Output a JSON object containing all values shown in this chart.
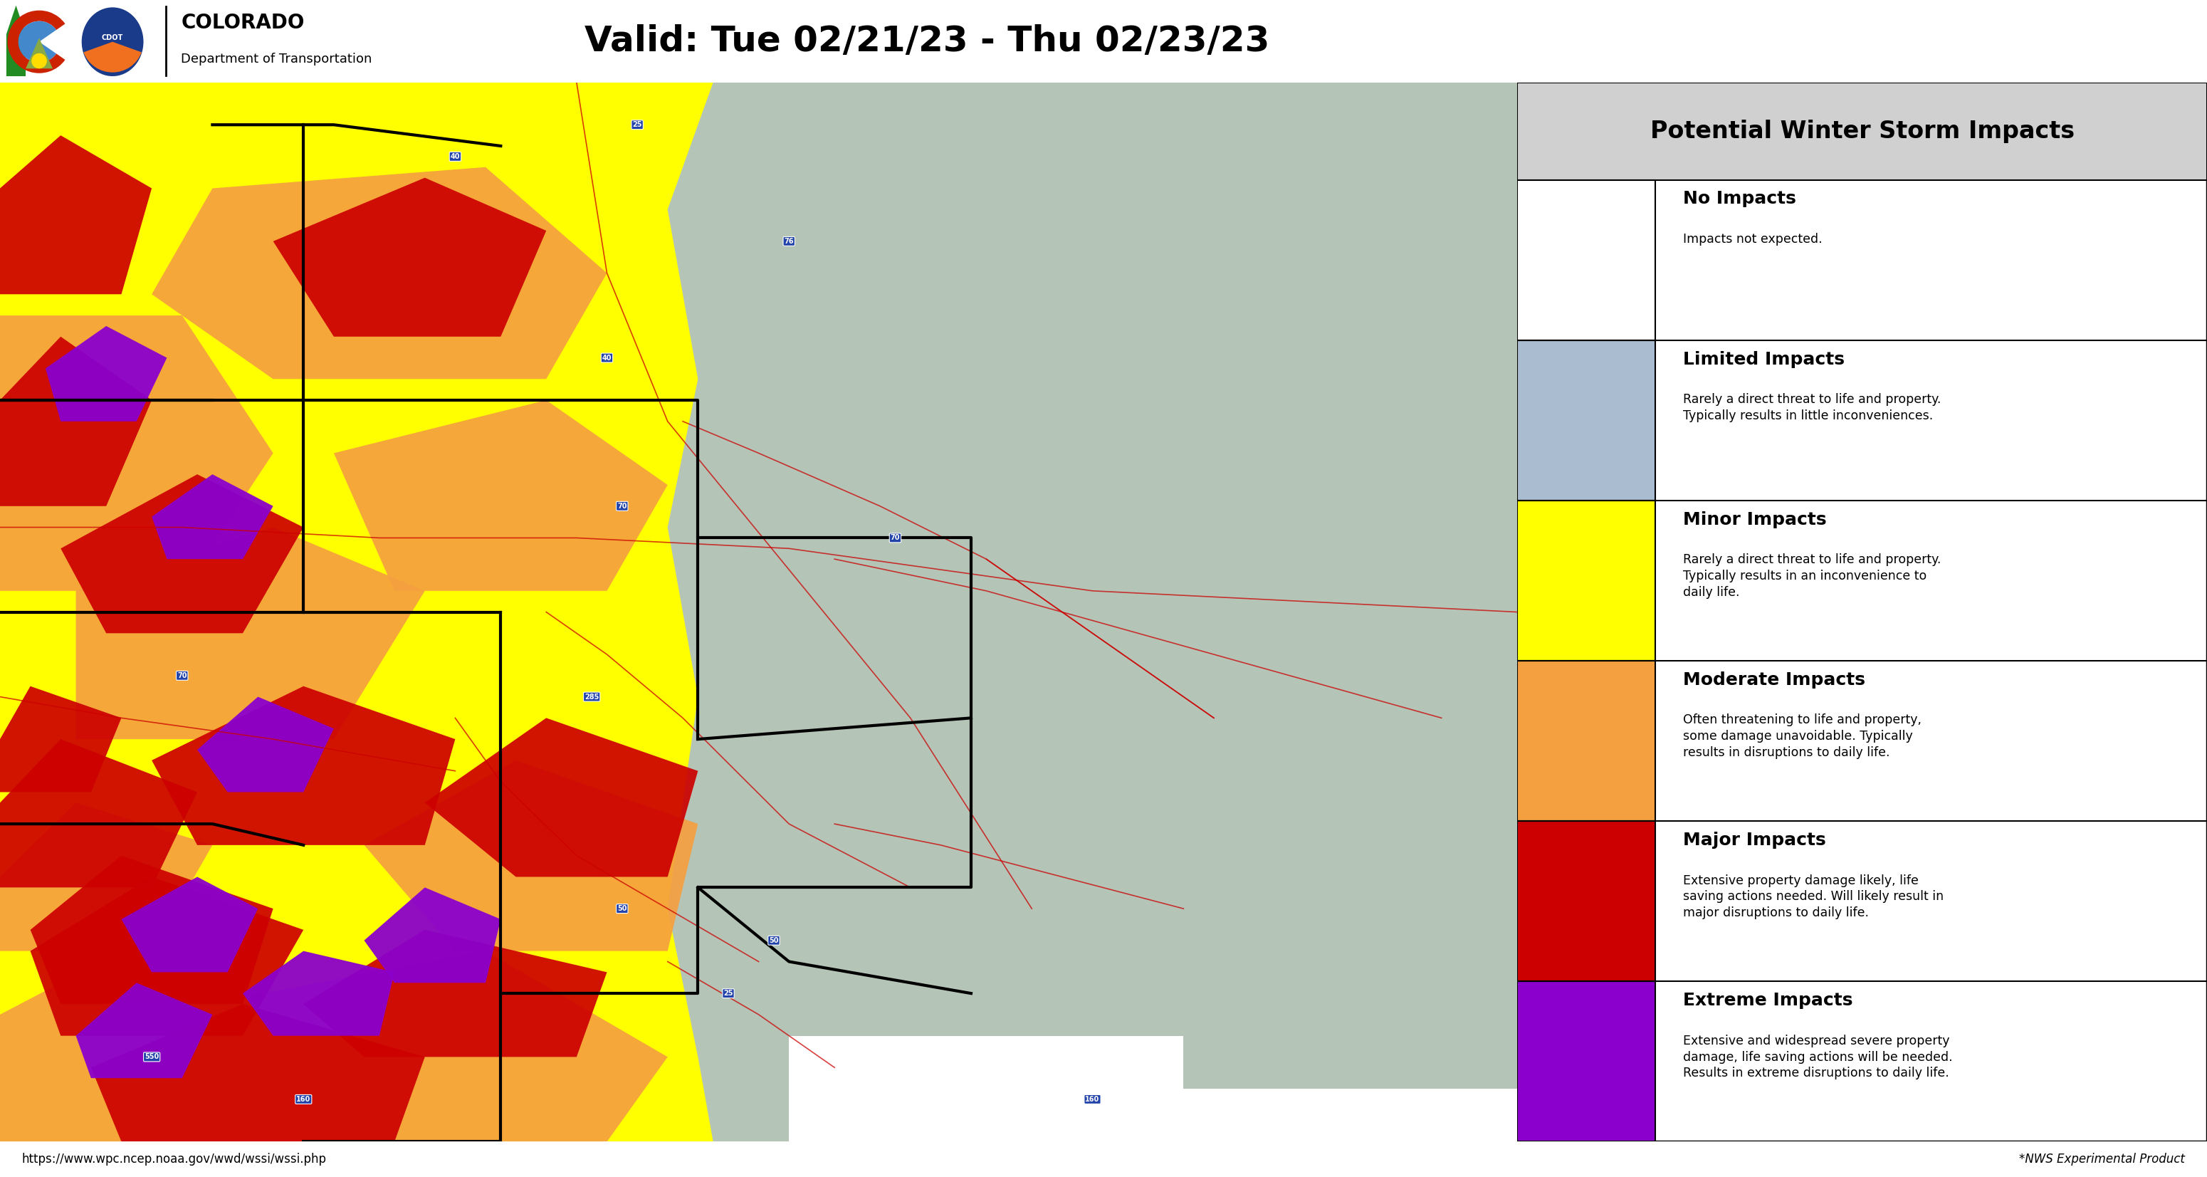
{
  "title": "Valid: Tue 02/21/23 - Thu 02/23/23",
  "legend_title": "Potential Winter Storm Impacts",
  "legend_items": [
    {
      "label": "No Impacts",
      "desc": "Impacts not expected.",
      "color": "#ffffff",
      "text_color": "#000000"
    },
    {
      "label": "Limited Impacts",
      "desc": "Rarely a direct threat to life and property.\nTypically results in little inconveniences.",
      "color": "#aabcd0",
      "text_color": "#000000"
    },
    {
      "label": "Minor Impacts",
      "desc": "Rarely a direct threat to life and property.\nTypically results in an inconvenience to\ndaily life.",
      "color": "#ffff00",
      "text_color": "#000000"
    },
    {
      "label": "Moderate Impacts",
      "desc": "Often threatening to life and property,\nsome damage unavoidable. Typically\nresults in disruptions to daily life.",
      "color": "#f5a040",
      "text_color": "#000000"
    },
    {
      "label": "Major Impacts",
      "desc": "Extensive property damage likely, life\nsaving actions needed. Will likely result in\nmajor disruptions to daily life.",
      "color": "#cc0000",
      "text_color": "#000000"
    },
    {
      "label": "Extreme Impacts",
      "desc": "Extensive and widespread severe property\ndamage, life saving actions will be needed.\nResults in extreme disruptions to daily life.",
      "color": "#8B00CC",
      "text_color": "#000000"
    }
  ],
  "map_colors": {
    "background": "#ffffff",
    "no_impact": "#ffffff",
    "limited": "#aabcd0",
    "minor": "#ffff00",
    "moderate": "#f5a040",
    "major": "#cc0000",
    "extreme": "#8B00CC"
  },
  "footer_left": "https://www.wpc.ncep.noaa.gov/wwd/wssi/wssi.php",
  "footer_right": "*NWS Experimental Product",
  "border_color": "#000000",
  "header_bg": "#d0d0d0",
  "figure_width": 31.0,
  "figure_height": 16.53,
  "cdot_org": "COLORADO\nDepartment of Transportation"
}
